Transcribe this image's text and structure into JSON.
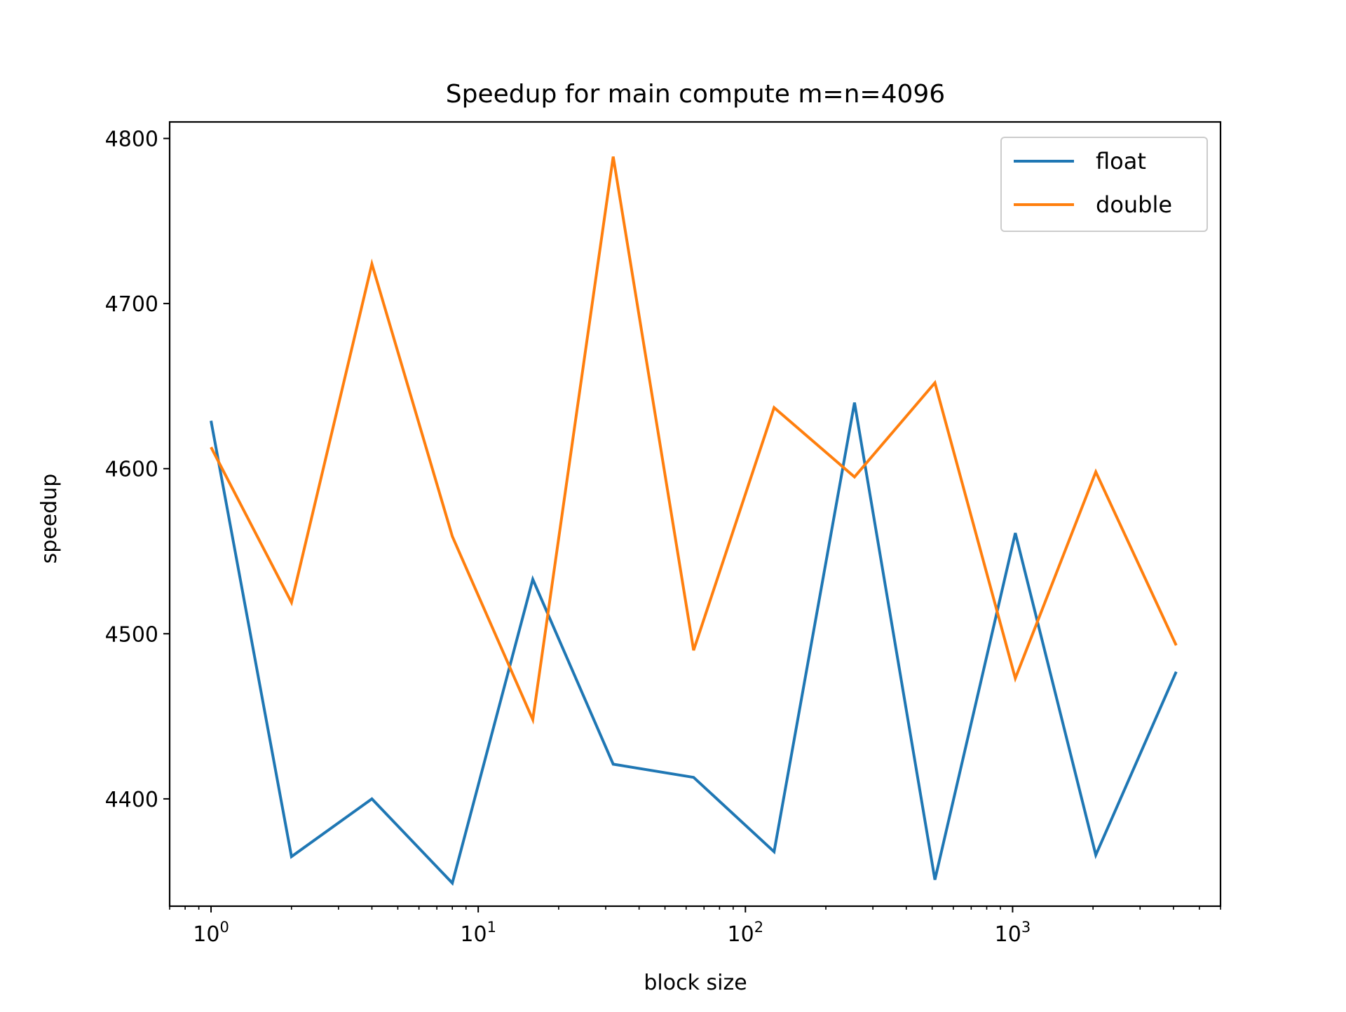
{
  "chart_data": {
    "type": "line",
    "title": "Speedup for main compute m=n=4096",
    "xlabel": "block size",
    "ylabel": "speedup",
    "xscale": "log",
    "xlim": [
      0.7,
      6000
    ],
    "ylim": [
      4335,
      4810
    ],
    "grid": false,
    "legend_position": "top-right",
    "x": [
      1,
      2,
      4,
      8,
      16,
      32,
      64,
      128,
      256,
      512,
      1024,
      2048,
      4096
    ],
    "x_ticks": [
      {
        "value": 1,
        "base": "10",
        "exp": "0"
      },
      {
        "value": 10,
        "base": "10",
        "exp": "1"
      },
      {
        "value": 100,
        "base": "10",
        "exp": "2"
      },
      {
        "value": 1000,
        "base": "10",
        "exp": "3"
      }
    ],
    "y_ticks": [
      {
        "value": 4400,
        "label": "4400"
      },
      {
        "value": 4500,
        "label": "4500"
      },
      {
        "value": 4600,
        "label": "4600"
      },
      {
        "value": 4700,
        "label": "4700"
      },
      {
        "value": 4800,
        "label": "4800"
      }
    ],
    "series": [
      {
        "name": "float",
        "color": "#1f77b4",
        "values": [
          4629,
          4365,
          4400,
          4349,
          4533,
          4421,
          4413,
          4368,
          4640,
          4351,
          4561,
          4366,
          4477
        ]
      },
      {
        "name": "double",
        "color": "#ff7f0e",
        "values": [
          4613,
          4519,
          4724,
          4559,
          4448,
          4789,
          4490,
          4637,
          4595,
          4652,
          4473,
          4598,
          4493
        ]
      }
    ]
  }
}
